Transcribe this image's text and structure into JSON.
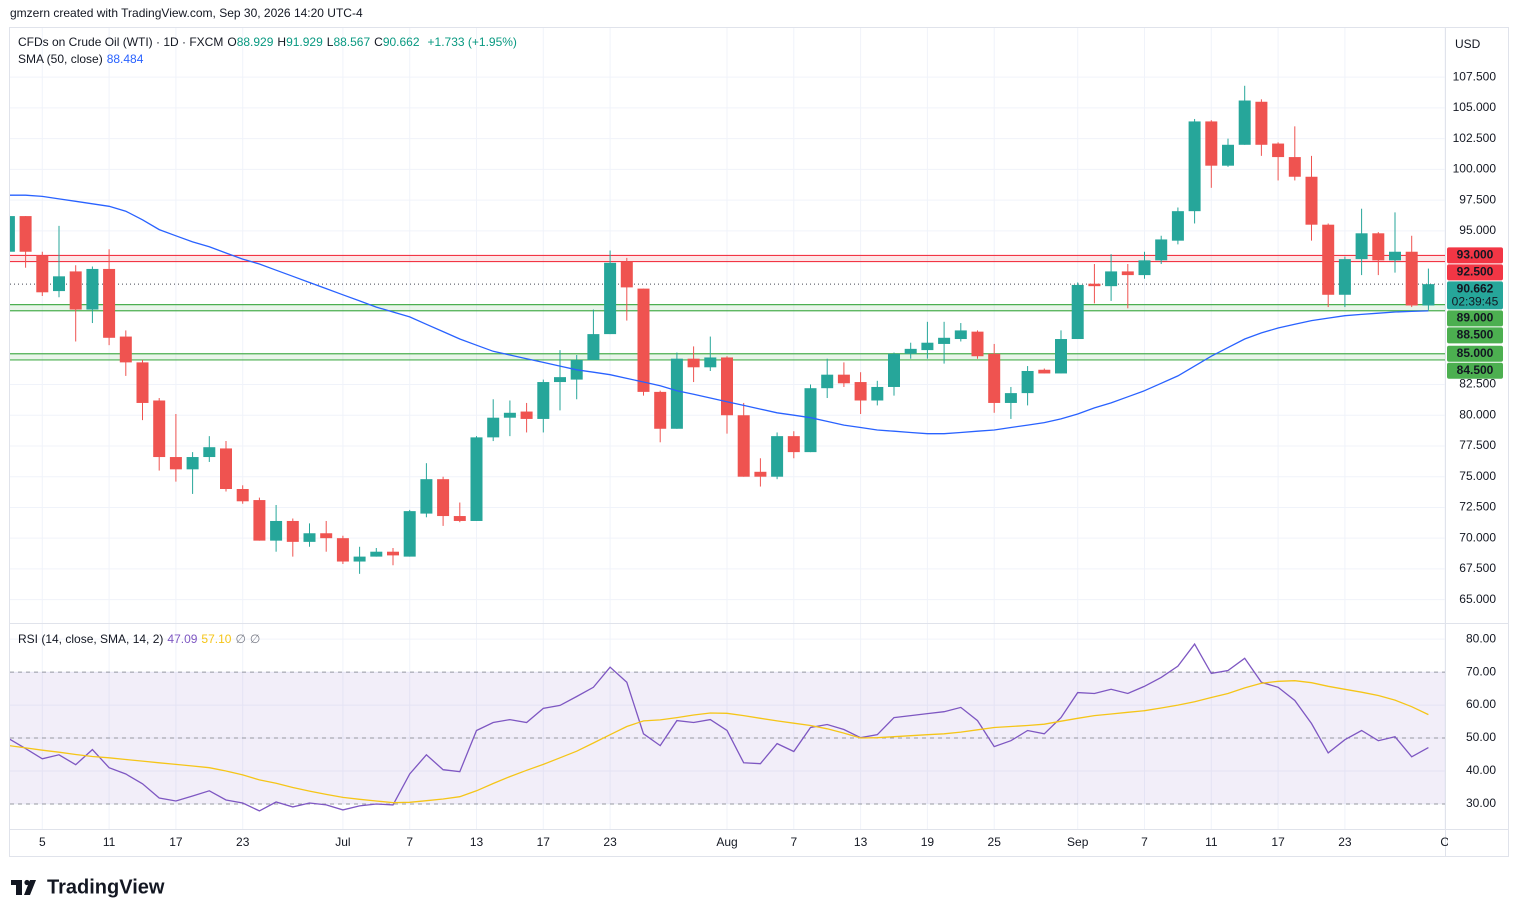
{
  "header": "gmzern created with TradingView.com, Sep 30, 2026 14:20 UTC-4",
  "currency": "USD",
  "footer_logo": "TradingView",
  "chart_data": [
    {
      "type": "candlestick",
      "title": "CFDs on Crude Oil (WTI) · 1D · FXCM",
      "ohlc_legend": [
        {
          "key": "O",
          "value": "88.929"
        },
        {
          "key": "H",
          "value": "91.929"
        },
        {
          "key": "L",
          "value": "88.567"
        },
        {
          "key": "C",
          "value": "90.662"
        }
      ],
      "change": "+1.733 (+1.95%)",
      "up_color": "#26a69a",
      "down_color": "#ef5350",
      "categories": [
        null,
        null,
        "5",
        null,
        null,
        null,
        "11",
        null,
        null,
        null,
        "17",
        null,
        null,
        null,
        "23",
        null,
        null,
        null,
        null,
        null,
        "Jul",
        null,
        null,
        null,
        "7",
        null,
        null,
        null,
        "13",
        null,
        null,
        null,
        "17",
        null,
        null,
        null,
        "23",
        null,
        null,
        null,
        null,
        null,
        null,
        "Aug",
        null,
        null,
        null,
        "7",
        null,
        null,
        null,
        "13",
        null,
        null,
        null,
        "19",
        null,
        null,
        null,
        "25",
        null,
        null,
        null,
        null,
        "Sep",
        null,
        null,
        null,
        "7",
        null,
        null,
        null,
        "11",
        null,
        null,
        null,
        "17",
        null,
        null,
        null,
        "23",
        null,
        null,
        null,
        null,
        null,
        "O"
      ],
      "open": [
        93.3,
        96.2,
        93.0,
        90.1,
        91.7,
        88.6,
        91.9,
        86.4,
        84.3,
        81.2,
        76.6,
        75.6,
        76.6,
        77.3,
        74.0,
        73.1,
        69.8,
        71.4,
        69.7,
        70.4,
        70.0,
        68.1,
        68.5,
        68.9,
        68.5,
        72.0,
        74.8,
        71.8,
        71.4,
        78.2,
        79.8,
        80.3,
        79.7,
        82.7,
        82.9,
        84.5,
        86.6,
        92.5,
        90.3,
        81.9,
        78.9,
        84.6,
        83.9,
        84.7,
        80.0,
        75.4,
        75.0,
        78.3,
        77.0,
        82.2,
        83.3,
        82.7,
        81.2,
        82.3,
        85.0,
        85.3,
        85.8,
        86.2,
        86.8,
        85.0,
        81.0,
        81.8,
        83.7,
        83.4,
        86.2,
        90.7,
        90.5,
        91.7,
        91.4,
        92.6,
        94.2,
        96.6,
        103.9,
        100.3,
        102.0,
        105.5,
        102.1,
        101.0,
        99.4,
        95.5,
        89.8,
        92.7,
        94.8,
        92.6,
        93.3,
        88.929,
        null
      ],
      "high": [
        96.2,
        96.2,
        93.3,
        95.4,
        92.2,
        92.1,
        93.5,
        86.9,
        84.5,
        81.4,
        80.1,
        77.0,
        78.3,
        77.9,
        74.3,
        73.3,
        72.7,
        71.6,
        71.2,
        71.4,
        70.2,
        69.3,
        69.2,
        69.2,
        72.3,
        76.1,
        75.0,
        72.9,
        78.3,
        81.3,
        81.2,
        81.0,
        82.9,
        85.3,
        84.9,
        88.6,
        93.4,
        92.8,
        90.3,
        82.0,
        85.1,
        85.6,
        86.4,
        84.8,
        81.0,
        76.5,
        78.6,
        78.7,
        82.5,
        84.6,
        84.3,
        83.5,
        82.8,
        85.1,
        85.9,
        87.6,
        87.6,
        87.5,
        86.9,
        85.8,
        82.3,
        84.0,
        83.8,
        86.9,
        90.8,
        92.3,
        93.1,
        92.3,
        93.3,
        94.6,
        96.9,
        104.1,
        104.0,
        102.5,
        106.8,
        105.7,
        102.2,
        103.5,
        101.1,
        95.6,
        92.9,
        96.8,
        94.9,
        96.5,
        94.6,
        91.929,
        null
      ],
      "low": [
        93.0,
        92.0,
        89.7,
        89.6,
        86.0,
        87.5,
        85.7,
        83.2,
        79.6,
        75.5,
        74.6,
        73.6,
        76.2,
        73.8,
        72.8,
        69.8,
        68.9,
        68.5,
        69.3,
        68.9,
        67.9,
        67.1,
        68.5,
        67.8,
        68.5,
        71.7,
        71.0,
        71.3,
        71.4,
        77.9,
        78.3,
        78.6,
        78.6,
        80.4,
        81.3,
        84.5,
        86.6,
        87.7,
        81.6,
        77.8,
        78.9,
        82.7,
        83.6,
        78.5,
        75.0,
        74.2,
        74.8,
        76.5,
        77.0,
        81.4,
        82.3,
        80.1,
        80.8,
        81.6,
        84.6,
        84.6,
        84.2,
        86.0,
        84.6,
        80.2,
        79.7,
        80.8,
        83.4,
        83.4,
        86.2,
        89.1,
        89.3,
        88.7,
        91.1,
        92.3,
        93.9,
        95.6,
        98.5,
        100.2,
        102.0,
        101.1,
        99.1,
        99.1,
        94.2,
        88.8,
        88.8,
        91.4,
        91.4,
        91.6,
        88.8,
        88.567,
        null
      ],
      "close": [
        96.2,
        93.3,
        90.0,
        91.3,
        88.6,
        91.9,
        86.3,
        84.3,
        81.0,
        76.6,
        75.6,
        76.6,
        77.4,
        74.0,
        73.0,
        69.8,
        71.4,
        69.7,
        70.4,
        70.0,
        68.1,
        68.5,
        68.9,
        68.6,
        72.2,
        74.8,
        71.8,
        71.4,
        78.2,
        79.8,
        80.2,
        79.7,
        82.7,
        83.1,
        84.5,
        86.6,
        92.4,
        90.4,
        81.9,
        78.9,
        84.6,
        83.9,
        84.7,
        80.0,
        75.0,
        75.0,
        78.3,
        77.0,
        82.2,
        83.3,
        82.6,
        81.2,
        82.3,
        85.0,
        85.4,
        85.9,
        86.3,
        86.9,
        84.8,
        81.0,
        81.8,
        83.6,
        83.4,
        86.2,
        90.6,
        90.5,
        91.7,
        91.4,
        92.6,
        94.3,
        96.6,
        103.9,
        100.3,
        102.0,
        105.6,
        102.0,
        101.0,
        99.4,
        95.5,
        89.8,
        92.7,
        94.8,
        92.6,
        93.3,
        88.929,
        90.662,
        null
      ],
      "series": [
        {
          "name": "SMA (50, close)",
          "legend_value": "88.484",
          "color": "#2962ff",
          "values": [
            97.9,
            97.9,
            97.8,
            97.6,
            97.4,
            97.2,
            97.0,
            96.6,
            95.9,
            95.1,
            94.6,
            94.1,
            93.7,
            93.2,
            92.7,
            92.3,
            91.8,
            91.3,
            90.8,
            90.3,
            89.8,
            89.3,
            88.8,
            88.4,
            88.0,
            87.4,
            86.8,
            86.2,
            85.7,
            85.2,
            84.9,
            84.6,
            84.3,
            84.0,
            83.7,
            83.5,
            83.3,
            83.0,
            82.7,
            82.4,
            82.0,
            81.7,
            81.4,
            81.1,
            80.8,
            80.5,
            80.2,
            80.0,
            79.8,
            79.5,
            79.2,
            79.0,
            78.8,
            78.7,
            78.6,
            78.5,
            78.5,
            78.6,
            78.7,
            78.8,
            79.0,
            79.2,
            79.4,
            79.7,
            80.1,
            80.6,
            81.0,
            81.5,
            82.0,
            82.6,
            83.2,
            84.0,
            84.8,
            85.5,
            86.2,
            86.7,
            87.1,
            87.4,
            87.7,
            87.9,
            88.1,
            88.2,
            88.3,
            88.4,
            88.45,
            88.484,
            null
          ]
        }
      ],
      "levels": [
        {
          "value": 93,
          "label": "93.000",
          "color": "#f23645"
        },
        {
          "value": 92.5,
          "label": "92.500",
          "color": "#f23645"
        },
        {
          "value": 89,
          "label": "89.000",
          "color": "#4caf50"
        },
        {
          "value": 88.5,
          "label": "88.500",
          "color": "#4caf50"
        },
        {
          "value": 85,
          "label": "85.000",
          "color": "#4caf50"
        },
        {
          "value": 84.5,
          "label": "84.500",
          "color": "#4caf50"
        }
      ],
      "last_price": {
        "value": 90.662,
        "label": "90.662",
        "countdown": "02:39:45",
        "color": "#26a69a"
      },
      "ylim": [
        63.1,
        111.5
      ],
      "yticks": [
        {
          "value": 107.5,
          "label": "107.500"
        },
        {
          "value": 105,
          "label": "105.000"
        },
        {
          "value": 102.5,
          "label": "102.500"
        },
        {
          "value": 100,
          "label": "100.000"
        },
        {
          "value": 97.5,
          "label": "97.500"
        },
        {
          "value": 95,
          "label": "95.000"
        },
        {
          "value": 82.5,
          "label": "82.500"
        },
        {
          "value": 80,
          "label": "80.000"
        },
        {
          "value": 77.5,
          "label": "77.500"
        },
        {
          "value": 75,
          "label": "75.000"
        },
        {
          "value": 72.5,
          "label": "72.500"
        },
        {
          "value": 70,
          "label": "70.000"
        },
        {
          "value": 67.5,
          "label": "67.500"
        },
        {
          "value": 65,
          "label": "65.000"
        }
      ],
      "grid": true
    },
    {
      "type": "line",
      "title": "RSI (14, close, SMA, 14, 2)",
      "legend_extra": [
        "∅",
        "∅"
      ],
      "series": [
        {
          "legend_value": "47.09",
          "color": "#7e57c2",
          "values": [
            49.8,
            46.8,
            43.7,
            44.9,
            41.9,
            46.5,
            41.0,
            39.1,
            36.1,
            31.8,
            30.9,
            32.4,
            34.0,
            31.2,
            30.3,
            27.9,
            30.6,
            29.1,
            30.3,
            29.7,
            28.2,
            29.4,
            30.0,
            29.7,
            39.1,
            44.9,
            40.4,
            39.8,
            52.3,
            54.7,
            55.6,
            54.7,
            59.0,
            59.9,
            62.6,
            65.4,
            71.5,
            66.9,
            51.3,
            47.7,
            55.3,
            54.7,
            55.6,
            52.3,
            42.5,
            42.2,
            48.3,
            45.9,
            53.2,
            54.1,
            52.6,
            50.1,
            51.0,
            56.2,
            56.8,
            57.4,
            58.0,
            59.3,
            55.3,
            47.4,
            49.2,
            52.3,
            51.3,
            56.2,
            63.8,
            63.5,
            64.8,
            63.5,
            65.7,
            68.4,
            71.8,
            78.5,
            69.6,
            70.5,
            74.2,
            66.9,
            65.4,
            61.4,
            54.4,
            45.5,
            49.5,
            52.3,
            49.2,
            50.4,
            44.3,
            47.09,
            null
          ]
        },
        {
          "legend_value": "57.10",
          "color": "#f5c518",
          "values": [
            47.7,
            47.0,
            46.3,
            45.7,
            45.0,
            44.4,
            44.0,
            43.5,
            43.0,
            42.5,
            42.0,
            41.5,
            41.0,
            40.0,
            38.8,
            37.3,
            36.3,
            35.0,
            33.9,
            32.9,
            32.0,
            31.4,
            30.9,
            30.4,
            30.5,
            31.0,
            31.5,
            32.2,
            34.0,
            36.2,
            38.3,
            40.2,
            42.0,
            44.0,
            46.0,
            48.5,
            51.0,
            53.5,
            55.2,
            55.5,
            56.2,
            57.0,
            57.6,
            57.5,
            56.8,
            56.0,
            55.2,
            54.5,
            53.8,
            52.8,
            51.5,
            50.0,
            50.1,
            50.4,
            50.7,
            51.0,
            51.3,
            51.8,
            52.5,
            53.2,
            53.5,
            53.8,
            54.2,
            55.1,
            56.0,
            56.8,
            57.3,
            57.8,
            58.3,
            59.1,
            60.0,
            61.0,
            62.3,
            63.5,
            65.2,
            66.6,
            67.2,
            67.4,
            66.8,
            65.7,
            64.8,
            63.9,
            62.9,
            61.5,
            59.5,
            57.1,
            null
          ]
        }
      ],
      "bands": [
        70,
        50,
        30
      ],
      "band_color": "#7e57c2",
      "ylim": [
        22.4,
        84.6
      ],
      "yticks": [
        {
          "value": 80,
          "label": "80.00"
        },
        {
          "value": 70,
          "label": "70.00"
        },
        {
          "value": 60,
          "label": "60.00"
        },
        {
          "value": 50,
          "label": "50.00"
        },
        {
          "value": 40,
          "label": "40.00"
        },
        {
          "value": 30,
          "label": "30.00"
        }
      ],
      "grid": true
    }
  ]
}
